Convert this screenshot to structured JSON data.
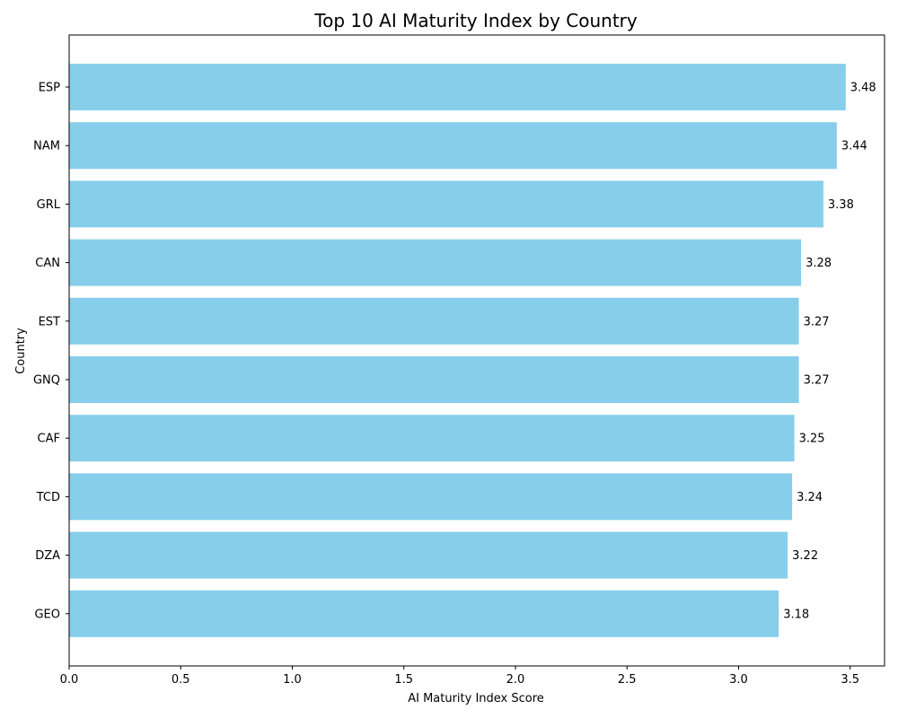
{
  "chart_data": {
    "type": "bar",
    "orientation": "horizontal",
    "title": "Top 10 AI Maturity Index by Country",
    "xlabel": "AI Maturity Index Score",
    "ylabel": "Country",
    "categories": [
      "ESP",
      "NAM",
      "GRL",
      "CAN",
      "EST",
      "GNQ",
      "CAF",
      "TCD",
      "DZA",
      "GEO"
    ],
    "values": [
      3.48,
      3.44,
      3.38,
      3.28,
      3.27,
      3.27,
      3.25,
      3.24,
      3.22,
      3.18
    ],
    "value_labels": [
      "3.48",
      "3.44",
      "3.38",
      "3.28",
      "3.27",
      "3.27",
      "3.25",
      "3.24",
      "3.22",
      "3.18"
    ],
    "xlim": [
      0,
      3.654
    ],
    "xticks": [
      0,
      0.5,
      1.0,
      1.5,
      2.0,
      2.5,
      3.0,
      3.5
    ],
    "xtick_labels": [
      "0.0",
      "0.5",
      "1.0",
      "1.5",
      "2.0",
      "2.5",
      "3.0",
      "3.5"
    ],
    "bar_color": "#87CEEB",
    "grid": false,
    "legend": false
  }
}
